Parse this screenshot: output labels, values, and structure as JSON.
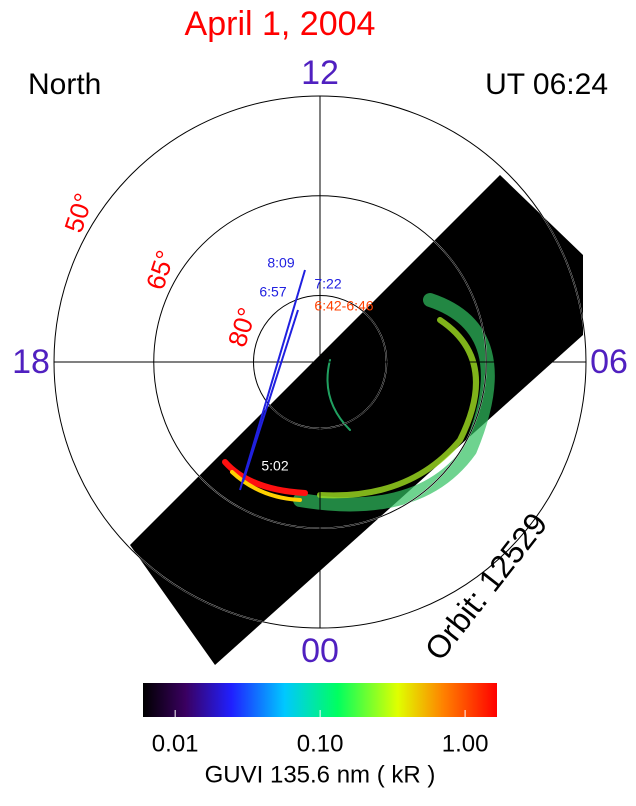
{
  "chart_data": {
    "type": "polar_image",
    "title": "April 1, 2004",
    "hemisphere": "North",
    "time": "UT 06:24",
    "orbit": "Orbit: 12529",
    "lt_ticks": [
      12,
      {
        "value": 6,
        "label": "06"
      },
      18,
      {
        "value": 0,
        "label": "00"
      }
    ],
    "lat_ticks": [
      {
        "value": 50,
        "label": "50°"
      },
      {
        "value": 65,
        "label": "65°"
      },
      {
        "value": 80,
        "label": "80°"
      }
    ],
    "track_labels": [
      "8:09",
      "7:22",
      "6:57",
      "6:42-6:46",
      "5:02"
    ],
    "colorbar": {
      "label": "GUVI 135.6 nm  ( kR )",
      "log": true,
      "lim": [
        0.006,
        1.66
      ],
      "ticks": [
        {
          "value": 0.01,
          "label": "0.01"
        },
        {
          "value": 0.1,
          "label": "0.10"
        },
        {
          "value": 1,
          "label": "1.00"
        }
      ]
    }
  }
}
